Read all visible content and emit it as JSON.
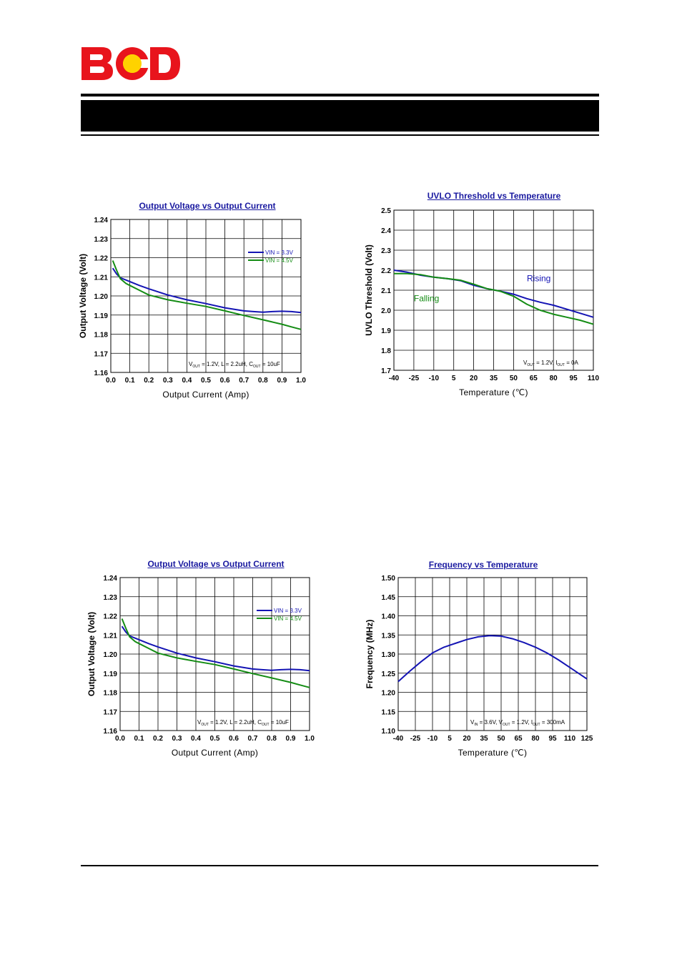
{
  "logo": {
    "text": "BCD",
    "colors": {
      "red": "#e8141c",
      "yellow": "#ffd200"
    }
  },
  "colors": {
    "blue": "#1414b4",
    "green": "#148c14",
    "title": "#1a1aa0",
    "grid": "#000000"
  },
  "chart_data": [
    {
      "type": "line",
      "title": "Output Voltage vs Output Current",
      "xlabel": "Output Current (Amp)",
      "ylabel": "Output Voltage (Volt)",
      "xlim": [
        0.0,
        1.0
      ],
      "ylim": [
        1.16,
        1.24
      ],
      "xticks": [
        "0.0",
        "0.1",
        "0.2",
        "0.3",
        "0.4",
        "0.5",
        "0.6",
        "0.7",
        "0.8",
        "0.9",
        "1.0"
      ],
      "yticks": [
        "1.16",
        "1.17",
        "1.18",
        "1.19",
        "1.20",
        "1.21",
        "1.22",
        "1.23",
        "1.24"
      ],
      "legend": [
        "VIN = 3.3V",
        "VIN = 4.5V"
      ],
      "legend_position": "upper-right",
      "annotation": {
        "parts": [
          "V",
          "OUT",
          " = 1.2V, L = 2.2uH, C",
          "OUT",
          " = 10uF"
        ]
      },
      "series": [
        {
          "name": "VIN = 3.3V",
          "color": "blue",
          "x": [
            0.01,
            0.03,
            0.05,
            0.1,
            0.15,
            0.2,
            0.3,
            0.4,
            0.5,
            0.6,
            0.7,
            0.75,
            0.8,
            0.85,
            0.9,
            0.95,
            1.0
          ],
          "y": [
            1.2145,
            1.2115,
            1.2095,
            1.2075,
            1.2055,
            1.2037,
            1.2005,
            1.198,
            1.196,
            1.1938,
            1.1922,
            1.1918,
            1.1915,
            1.1918,
            1.192,
            1.1918,
            1.1913
          ]
        },
        {
          "name": "VIN = 4.5V",
          "color": "green",
          "x": [
            0.01,
            0.03,
            0.05,
            0.08,
            0.1,
            0.15,
            0.2,
            0.3,
            0.4,
            0.5,
            0.6,
            0.7,
            0.8,
            0.9,
            0.95,
            1.0
          ],
          "y": [
            1.2185,
            1.2135,
            1.209,
            1.2065,
            1.2055,
            1.203,
            1.2005,
            1.198,
            1.1962,
            1.1945,
            1.1922,
            1.1898,
            1.1875,
            1.1852,
            1.1838,
            1.1825
          ]
        }
      ]
    },
    {
      "type": "line",
      "title": "UVLO Threshold vs Temperature",
      "xlabel": "Temperature (℃)",
      "ylabel": "UVLO Threshold (Volt)",
      "xlim": [
        -40,
        110
      ],
      "ylim": [
        1.7,
        2.5
      ],
      "xticks": [
        "-40",
        "-25",
        "-10",
        "5",
        "20",
        "35",
        "50",
        "65",
        "80",
        "95",
        "110"
      ],
      "yticks": [
        "1.7",
        "1.8",
        "1.9",
        "2.0",
        "2.1",
        "2.2",
        "2.3",
        "2.4",
        "2.5"
      ],
      "labels": [
        {
          "text": "Rising",
          "color": "blue",
          "x": 60,
          "y": 2.145
        },
        {
          "text": "Falling",
          "color": "green",
          "x": -25,
          "y": 2.045
        }
      ],
      "annotation": {
        "parts": [
          "V",
          "OUT",
          " = 1.2V, I",
          "OUT",
          " = 0A"
        ]
      },
      "series": [
        {
          "name": "Rising",
          "color": "blue",
          "x": [
            -40,
            -30,
            -20,
            -10,
            0,
            10,
            20,
            30,
            40,
            50,
            60,
            70,
            80,
            90,
            100,
            110
          ],
          "y": [
            2.2,
            2.19,
            2.175,
            2.165,
            2.158,
            2.148,
            2.125,
            2.108,
            2.095,
            2.08,
            2.058,
            2.04,
            2.025,
            2.005,
            1.985,
            1.965
          ]
        },
        {
          "name": "Falling",
          "color": "green",
          "x": [
            -40,
            -30,
            -20,
            -10,
            0,
            10,
            20,
            30,
            40,
            50,
            60,
            70,
            80,
            90,
            100,
            110
          ],
          "y": [
            2.183,
            2.183,
            2.178,
            2.165,
            2.158,
            2.15,
            2.13,
            2.108,
            2.095,
            2.07,
            2.03,
            2.0,
            1.98,
            1.965,
            1.95,
            1.93
          ]
        }
      ]
    },
    {
      "type": "line",
      "title": "Output Voltage vs Output Current",
      "xlabel": "Output Current (Amp)",
      "ylabel": "Output Voltage (Volt)",
      "xlim": [
        0.0,
        1.0
      ],
      "ylim": [
        1.16,
        1.24
      ],
      "xticks": [
        "0.0",
        "0.1",
        "0.2",
        "0.3",
        "0.4",
        "0.5",
        "0.6",
        "0.7",
        "0.8",
        "0.9",
        "1.0"
      ],
      "yticks": [
        "1.16",
        "1.17",
        "1.18",
        "1.19",
        "1.20",
        "1.21",
        "1.22",
        "1.23",
        "1.24"
      ],
      "legend": [
        "VIN = 3.3V",
        "VIN = 4.5V"
      ],
      "legend_position": "upper-right",
      "annotation": {
        "parts": [
          "V",
          "OUT",
          " = 1.2V, L = 2.2uH, C",
          "OUT",
          " = 10uF"
        ]
      },
      "series": [
        {
          "name": "VIN = 3.3V",
          "color": "blue",
          "x": [
            0.01,
            0.03,
            0.05,
            0.1,
            0.15,
            0.2,
            0.3,
            0.4,
            0.5,
            0.6,
            0.7,
            0.75,
            0.8,
            0.85,
            0.9,
            0.95,
            1.0
          ],
          "y": [
            1.2145,
            1.2115,
            1.2095,
            1.2075,
            1.2055,
            1.2037,
            1.2005,
            1.198,
            1.196,
            1.1938,
            1.1922,
            1.1918,
            1.1915,
            1.1918,
            1.192,
            1.1918,
            1.1913
          ]
        },
        {
          "name": "VIN = 4.5V",
          "color": "green",
          "x": [
            0.01,
            0.03,
            0.05,
            0.08,
            0.1,
            0.15,
            0.2,
            0.3,
            0.4,
            0.5,
            0.6,
            0.7,
            0.8,
            0.9,
            0.95,
            1.0
          ],
          "y": [
            1.2185,
            1.2135,
            1.209,
            1.2065,
            1.2055,
            1.203,
            1.2005,
            1.198,
            1.1962,
            1.1945,
            1.1922,
            1.1898,
            1.1875,
            1.1852,
            1.1838,
            1.1825
          ]
        }
      ]
    },
    {
      "type": "line",
      "title": "Frequency vs Temperature",
      "xlabel": "Temperature (℃)",
      "ylabel": "Frequency (MHz)",
      "xlim": [
        -40,
        125
      ],
      "ylim": [
        1.1,
        1.5
      ],
      "xticks": [
        "-40",
        "-25",
        "-10",
        "5",
        "20",
        "35",
        "50",
        "65",
        "80",
        "95",
        "110",
        "125"
      ],
      "yticks": [
        "1.10",
        "1.15",
        "1.20",
        "1.25",
        "1.30",
        "1.35",
        "1.40",
        "1.45",
        "1.50"
      ],
      "annotation": {
        "parts": [
          "V",
          "IN",
          " = 3.6V, V",
          "OUT",
          " = 1.2V, I",
          "OUT",
          " = 300mA"
        ]
      },
      "series": [
        {
          "name": "Frequency",
          "color": "blue",
          "x": [
            -40,
            -30,
            -20,
            -10,
            0,
            10,
            20,
            30,
            40,
            50,
            60,
            70,
            80,
            90,
            100,
            110,
            125
          ],
          "y": [
            1.228,
            1.255,
            1.28,
            1.303,
            1.318,
            1.328,
            1.338,
            1.345,
            1.348,
            1.347,
            1.34,
            1.33,
            1.318,
            1.303,
            1.285,
            1.265,
            1.235
          ]
        }
      ]
    }
  ]
}
